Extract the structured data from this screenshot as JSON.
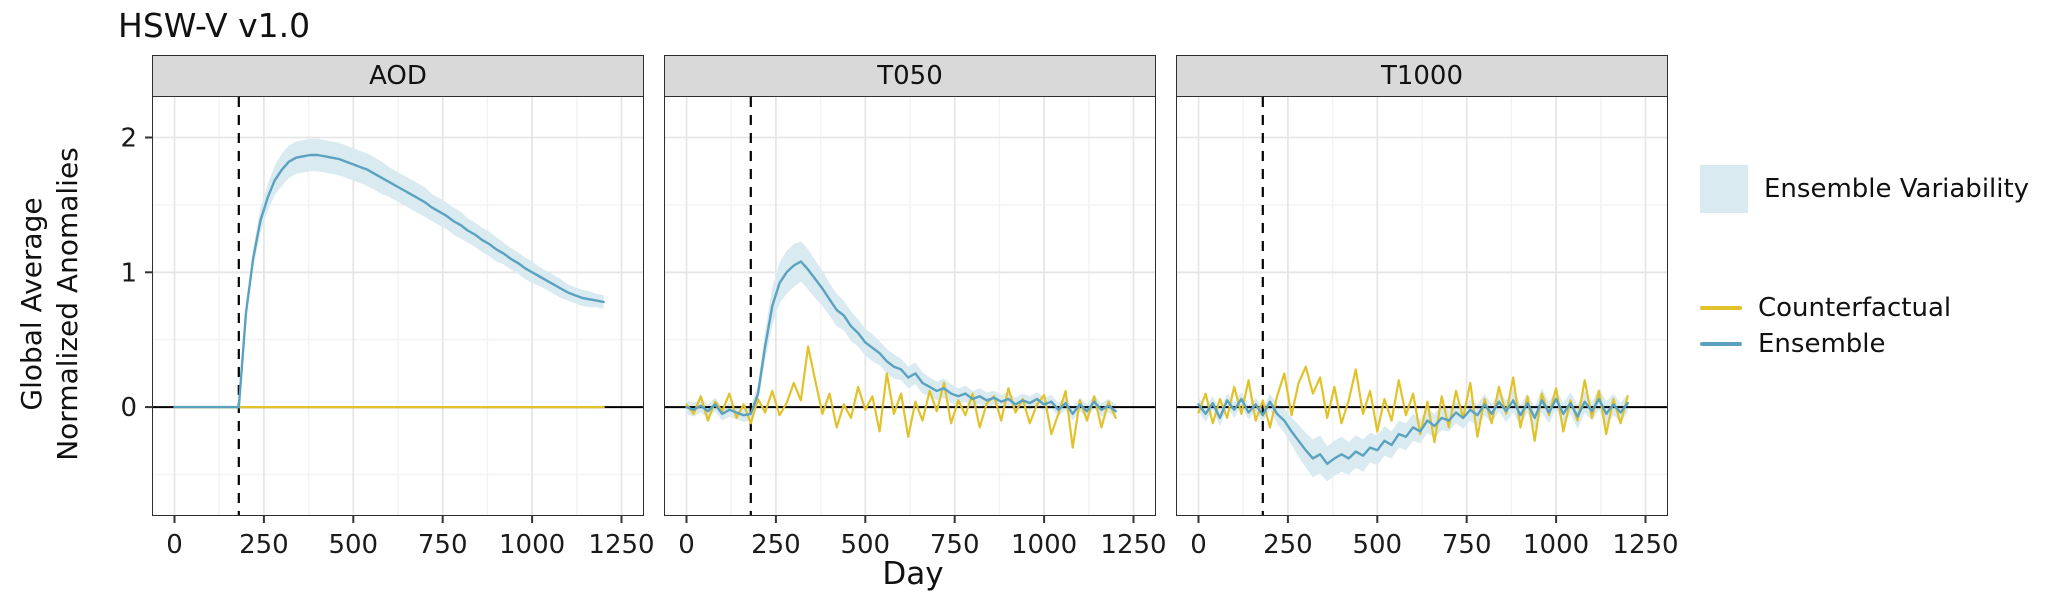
{
  "chart_data": {
    "type": "line",
    "title": "HSW-V v1.0",
    "xlabel": "Day",
    "ylabel": "Global Average Normalized Anomalies",
    "ylabel_lines": [
      "Global Average",
      "Normalized Anomalies"
    ],
    "legend": {
      "variability": "Ensemble Variability",
      "counterfactual": "Counterfactual",
      "ensemble": "Ensemble"
    },
    "event_day": 180,
    "axes": {
      "xlim": [
        -60,
        1310
      ],
      "ylim": [
        -0.8,
        2.3
      ],
      "x_major": [
        0,
        250,
        500,
        750,
        1000,
        1250
      ],
      "x_minor": [
        125,
        375,
        625,
        875,
        1125
      ],
      "y_major": [
        0,
        1,
        2
      ],
      "y_minor": [
        -0.5,
        0.5,
        1.5
      ],
      "grid": true,
      "legend_position": "right"
    },
    "colors": {
      "ensemble": "#5ba2c0",
      "counterfactual": "#e2c22b",
      "ribbon": "#d9eaf0",
      "strip_bg": "#d9d9d9",
      "grid_major": "#e6e6e6",
      "grid_minor": "#f3f3f3",
      "reference_line": "#000000"
    },
    "x": [
      0,
      20,
      40,
      60,
      80,
      100,
      120,
      140,
      160,
      180,
      200,
      220,
      240,
      260,
      280,
      300,
      320,
      340,
      360,
      380,
      400,
      420,
      440,
      460,
      480,
      500,
      520,
      540,
      560,
      580,
      600,
      620,
      640,
      660,
      680,
      700,
      720,
      740,
      760,
      780,
      800,
      820,
      840,
      860,
      880,
      900,
      920,
      940,
      960,
      980,
      1000,
      1020,
      1040,
      1060,
      1080,
      1100,
      1120,
      1140,
      1160,
      1180,
      1200
    ],
    "panels": [
      {
        "title": "AOD",
        "ensemble": [
          0,
          0,
          0,
          0,
          0,
          0,
          0,
          0,
          0,
          0,
          0.7,
          1.1,
          1.38,
          1.55,
          1.68,
          1.76,
          1.82,
          1.85,
          1.86,
          1.87,
          1.87,
          1.86,
          1.85,
          1.84,
          1.82,
          1.8,
          1.78,
          1.76,
          1.73,
          1.7,
          1.67,
          1.64,
          1.61,
          1.58,
          1.55,
          1.52,
          1.48,
          1.45,
          1.42,
          1.38,
          1.35,
          1.31,
          1.28,
          1.24,
          1.21,
          1.17,
          1.14,
          1.1,
          1.07,
          1.03,
          1.0,
          0.97,
          0.94,
          0.91,
          0.88,
          0.85,
          0.83,
          0.81,
          0.8,
          0.79,
          0.78
        ],
        "variability": [
          0,
          0,
          0,
          0,
          0,
          0,
          0,
          0,
          0,
          0,
          0.04,
          0.07,
          0.09,
          0.1,
          0.11,
          0.12,
          0.12,
          0.12,
          0.12,
          0.12,
          0.12,
          0.12,
          0.12,
          0.12,
          0.12,
          0.12,
          0.12,
          0.12,
          0.12,
          0.12,
          0.11,
          0.11,
          0.11,
          0.11,
          0.11,
          0.11,
          0.1,
          0.1,
          0.1,
          0.1,
          0.1,
          0.09,
          0.09,
          0.09,
          0.09,
          0.09,
          0.08,
          0.08,
          0.08,
          0.08,
          0.08,
          0.07,
          0.07,
          0.07,
          0.07,
          0.06,
          0.06,
          0.06,
          0.06,
          0.05,
          0.05
        ],
        "counterfactual": [
          0,
          0,
          0,
          0,
          0,
          0,
          0,
          0,
          0,
          0,
          0,
          0,
          0,
          0,
          0,
          0,
          0,
          0,
          0,
          0,
          0,
          0,
          0,
          0,
          0,
          0,
          0,
          0,
          0,
          0,
          0,
          0,
          0,
          0,
          0,
          0,
          0,
          0,
          0,
          0,
          0,
          0,
          0,
          0,
          0,
          0,
          0,
          0,
          0,
          0,
          0,
          0,
          0,
          0,
          0,
          0,
          0,
          0,
          0,
          0,
          0
        ]
      },
      {
        "title": "T050",
        "ensemble": [
          0.0,
          -0.02,
          0.01,
          -0.03,
          0.02,
          -0.05,
          -0.02,
          -0.04,
          -0.06,
          -0.05,
          0.1,
          0.45,
          0.75,
          0.92,
          1.0,
          1.05,
          1.08,
          1.02,
          0.95,
          0.88,
          0.8,
          0.72,
          0.68,
          0.6,
          0.55,
          0.48,
          0.44,
          0.4,
          0.34,
          0.3,
          0.28,
          0.22,
          0.25,
          0.18,
          0.15,
          0.12,
          0.14,
          0.1,
          0.08,
          0.1,
          0.06,
          0.08,
          0.05,
          0.07,
          0.04,
          0.06,
          0.02,
          0.05,
          0.03,
          0.06,
          0.02,
          0.04,
          -0.02,
          0.03,
          -0.05,
          0.02,
          -0.03,
          0.04,
          -0.02,
          0.01,
          -0.03
        ],
        "variability": [
          0.05,
          0.05,
          0.05,
          0.05,
          0.05,
          0.05,
          0.05,
          0.05,
          0.05,
          0.05,
          0.07,
          0.11,
          0.14,
          0.15,
          0.16,
          0.16,
          0.15,
          0.15,
          0.14,
          0.13,
          0.12,
          0.12,
          0.11,
          0.11,
          0.1,
          0.1,
          0.1,
          0.09,
          0.09,
          0.09,
          0.08,
          0.08,
          0.08,
          0.08,
          0.07,
          0.07,
          0.07,
          0.07,
          0.06,
          0.06,
          0.06,
          0.06,
          0.06,
          0.05,
          0.05,
          0.05,
          0.05,
          0.05,
          0.05,
          0.05,
          0.05,
          0.05,
          0.05,
          0.05,
          0.05,
          0.05,
          0.05,
          0.05,
          0.05,
          0.05,
          0.05
        ],
        "counterfactual": [
          0.02,
          -0.05,
          0.08,
          -0.1,
          0.04,
          -0.03,
          0.1,
          -0.08,
          0.02,
          -0.12,
          0.06,
          -0.04,
          0.12,
          -0.06,
          0.03,
          0.18,
          0.05,
          0.45,
          0.2,
          -0.05,
          0.1,
          -0.15,
          0.02,
          -0.08,
          0.15,
          -0.02,
          0.08,
          -0.18,
          0.25,
          -0.05,
          0.1,
          -0.22,
          0.04,
          -0.1,
          0.12,
          -0.03,
          0.18,
          -0.12,
          0.05,
          -0.06,
          0.1,
          -0.15,
          0.03,
          0.08,
          -0.1,
          0.14,
          -0.04,
          0.06,
          -0.12,
          0.02,
          0.09,
          -0.2,
          -0.05,
          0.12,
          -0.3,
          0.05,
          -0.1,
          0.08,
          -0.15,
          0.04,
          -0.08
        ]
      },
      {
        "title": "T1000",
        "ensemble": [
          0.02,
          -0.05,
          0.03,
          -0.08,
          0.05,
          -0.02,
          0.06,
          -0.04,
          0.02,
          -0.06,
          0.04,
          -0.05,
          -0.1,
          -0.18,
          -0.25,
          -0.32,
          -0.38,
          -0.35,
          -0.42,
          -0.38,
          -0.35,
          -0.38,
          -0.33,
          -0.36,
          -0.3,
          -0.32,
          -0.25,
          -0.28,
          -0.2,
          -0.22,
          -0.15,
          -0.18,
          -0.1,
          -0.14,
          -0.08,
          -0.1,
          -0.04,
          -0.08,
          -0.02,
          -0.06,
          0.02,
          -0.05,
          0.04,
          -0.03,
          0.05,
          -0.06,
          0.03,
          -0.08,
          0.05,
          -0.04,
          0.06,
          -0.05,
          0.03,
          -0.07,
          0.04,
          -0.03,
          0.06,
          -0.05,
          0.02,
          -0.04,
          0.03
        ],
        "variability": [
          0.05,
          0.06,
          0.05,
          0.06,
          0.05,
          0.06,
          0.05,
          0.05,
          0.05,
          0.05,
          0.06,
          0.07,
          0.09,
          0.1,
          0.12,
          0.13,
          0.14,
          0.14,
          0.13,
          0.13,
          0.13,
          0.12,
          0.12,
          0.12,
          0.11,
          0.11,
          0.11,
          0.1,
          0.1,
          0.1,
          0.1,
          0.09,
          0.09,
          0.09,
          0.09,
          0.08,
          0.08,
          0.08,
          0.08,
          0.08,
          0.08,
          0.07,
          0.07,
          0.08,
          0.09,
          0.08,
          0.07,
          0.08,
          0.09,
          0.08,
          0.07,
          0.08,
          0.08,
          0.09,
          0.08,
          0.07,
          0.08,
          0.09,
          0.08,
          0.07,
          0.07
        ],
        "counterfactual": [
          -0.04,
          0.1,
          -0.12,
          0.06,
          -0.08,
          0.15,
          -0.05,
          0.2,
          -0.1,
          0.05,
          -0.15,
          0.08,
          0.25,
          -0.06,
          0.18,
          0.3,
          0.1,
          0.22,
          -0.08,
          0.15,
          -0.12,
          0.05,
          0.28,
          -0.05,
          0.12,
          -0.18,
          0.06,
          -0.1,
          0.2,
          -0.06,
          0.1,
          -0.2,
          0.04,
          -0.26,
          0.08,
          -0.15,
          0.12,
          -0.08,
          0.18,
          -0.22,
          0.06,
          -0.12,
          0.15,
          -0.05,
          0.22,
          -0.15,
          0.08,
          -0.25,
          0.1,
          -0.06,
          0.14,
          -0.18,
          0.05,
          -0.1,
          0.2,
          -0.08,
          0.12,
          -0.2,
          0.06,
          -0.12,
          0.08
        ]
      }
    ]
  }
}
